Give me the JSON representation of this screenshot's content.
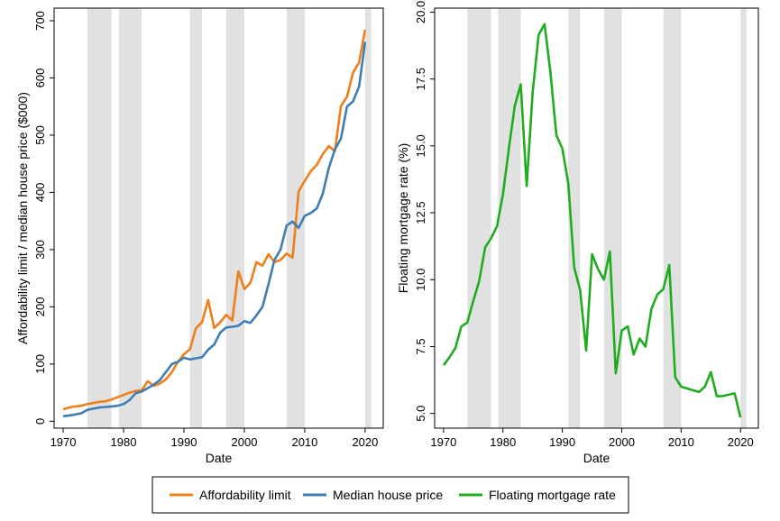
{
  "chart_data": [
    {
      "type": "line",
      "xlabel": "Date",
      "ylabel": "Affordability limit / median house price ($000)",
      "xlim": [
        1968.5,
        2023
      ],
      "ylim": [
        -12,
        722
      ],
      "x_ticks": [
        1970,
        1980,
        1990,
        2000,
        2010,
        2020
      ],
      "y_ticks": [
        0,
        100,
        200,
        300,
        400,
        500,
        600,
        700
      ],
      "recession_shading": [
        [
          1974,
          1978
        ],
        [
          1979.2,
          1983
        ],
        [
          1991,
          1993
        ],
        [
          1997,
          2000
        ],
        [
          2007,
          2010
        ],
        [
          2020,
          2021
        ]
      ],
      "series": [
        {
          "name": "Affordability limit",
          "color": "#ef7f1a",
          "points": [
            [
              1970,
              21
            ],
            [
              1971,
              24
            ],
            [
              1972,
              26
            ],
            [
              1973,
              27
            ],
            [
              1974,
              30
            ],
            [
              1975,
              32
            ],
            [
              1976,
              34
            ],
            [
              1977,
              35
            ],
            [
              1978,
              38
            ],
            [
              1979,
              42
            ],
            [
              1980,
              46
            ],
            [
              1981,
              50
            ],
            [
              1982,
              53
            ],
            [
              1983,
              54
            ],
            [
              1984,
              70
            ],
            [
              1985,
              62
            ],
            [
              1986,
              66
            ],
            [
              1987,
              73
            ],
            [
              1988,
              86
            ],
            [
              1989,
              104
            ],
            [
              1990,
              117
            ],
            [
              1991,
              126
            ],
            [
              1992,
              163
            ],
            [
              1993,
              173
            ],
            [
              1994,
              212
            ],
            [
              1995,
              163
            ],
            [
              1996,
              173
            ],
            [
              1997,
              186
            ],
            [
              1998,
              176
            ],
            [
              1999,
              262
            ],
            [
              2000,
              231
            ],
            [
              2001,
              242
            ],
            [
              2002,
              278
            ],
            [
              2003,
              272
            ],
            [
              2004,
              292
            ],
            [
              2005,
              278
            ],
            [
              2006,
              282
            ],
            [
              2007,
              293
            ],
            [
              2008,
              286
            ],
            [
              2009,
              402
            ],
            [
              2010,
              420
            ],
            [
              2011,
              437
            ],
            [
              2012,
              448
            ],
            [
              2013,
              467
            ],
            [
              2014,
              481
            ],
            [
              2015,
              472
            ],
            [
              2016,
              551
            ],
            [
              2017,
              567
            ],
            [
              2018,
              609
            ],
            [
              2019,
              627
            ],
            [
              2020,
              684
            ]
          ]
        },
        {
          "name": "Median house price",
          "color": "#3f7db5",
          "points": [
            [
              1970,
              9
            ],
            [
              1971,
              10
            ],
            [
              1972,
              12
            ],
            [
              1973,
              14
            ],
            [
              1974,
              20
            ],
            [
              1975,
              22
            ],
            [
              1976,
              24
            ],
            [
              1977,
              25
            ],
            [
              1978,
              26
            ],
            [
              1979,
              27
            ],
            [
              1980,
              30
            ],
            [
              1981,
              37
            ],
            [
              1982,
              49
            ],
            [
              1983,
              52
            ],
            [
              1984,
              58
            ],
            [
              1985,
              64
            ],
            [
              1986,
              72
            ],
            [
              1987,
              86
            ],
            [
              1988,
              100
            ],
            [
              1989,
              104
            ],
            [
              1990,
              111
            ],
            [
              1991,
              108
            ],
            [
              1992,
              110
            ],
            [
              1993,
              112
            ],
            [
              1994,
              125
            ],
            [
              1995,
              134
            ],
            [
              1996,
              155
            ],
            [
              1997,
              164
            ],
            [
              1998,
              165
            ],
            [
              1999,
              167
            ],
            [
              2000,
              175
            ],
            [
              2001,
              172
            ],
            [
              2002,
              185
            ],
            [
              2003,
              200
            ],
            [
              2004,
              240
            ],
            [
              2005,
              282
            ],
            [
              2006,
              300
            ],
            [
              2007,
              342
            ],
            [
              2008,
              349
            ],
            [
              2009,
              338
            ],
            [
              2010,
              359
            ],
            [
              2011,
              364
            ],
            [
              2012,
              372
            ],
            [
              2013,
              398
            ],
            [
              2014,
              443
            ],
            [
              2015,
              475
            ],
            [
              2016,
              494
            ],
            [
              2017,
              550
            ],
            [
              2018,
              559
            ],
            [
              2019,
              585
            ],
            [
              2020,
              663
            ]
          ]
        }
      ]
    },
    {
      "type": "line",
      "xlabel": "Date",
      "ylabel": "Floating mortgage rate (%)",
      "xlim": [
        1968.5,
        2023
      ],
      "ylim": [
        4.45,
        20.15
      ],
      "x_ticks": [
        1970,
        1980,
        1990,
        2000,
        2010,
        2020
      ],
      "y_ticks": [
        "5.0",
        "7.5",
        "10.0",
        "12.5",
        "15.0",
        "17.5",
        "20.0"
      ],
      "recession_shading": [
        [
          1974,
          1978
        ],
        [
          1979.2,
          1983
        ],
        [
          1991,
          1993
        ],
        [
          1997,
          2000
        ],
        [
          2007,
          2010
        ],
        [
          2020,
          2021
        ]
      ],
      "series": [
        {
          "name": "Floating mortgage rate",
          "color": "#1fad1f",
          "points": [
            [
              1970,
              6.8
            ],
            [
              1971,
              7.1
            ],
            [
              1972,
              7.45
            ],
            [
              1973,
              8.25
            ],
            [
              1974,
              8.4
            ],
            [
              1975,
              9.2
            ],
            [
              1976,
              9.95
            ],
            [
              1977,
              11.2
            ],
            [
              1978,
              11.55
            ],
            [
              1979,
              12.0
            ],
            [
              1980,
              13.2
            ],
            [
              1981,
              14.9
            ],
            [
              1982,
              16.5
            ],
            [
              1983,
              17.3
            ],
            [
              1984,
              13.5
            ],
            [
              1985,
              17.0
            ],
            [
              1986,
              19.15
            ],
            [
              1987,
              19.55
            ],
            [
              1988,
              17.75
            ],
            [
              1989,
              15.4
            ],
            [
              1990,
              14.9
            ],
            [
              1991,
              13.6
            ],
            [
              1992,
              10.45
            ],
            [
              1993,
              9.6
            ],
            [
              1994,
              7.35
            ],
            [
              1995,
              10.95
            ],
            [
              1996,
              10.4
            ],
            [
              1997,
              10.0
            ],
            [
              1998,
              11.05
            ],
            [
              1999,
              6.5
            ],
            [
              2000,
              8.1
            ],
            [
              2001,
              8.25
            ],
            [
              2002,
              7.2
            ],
            [
              2003,
              7.8
            ],
            [
              2004,
              7.5
            ],
            [
              2005,
              8.9
            ],
            [
              2006,
              9.45
            ],
            [
              2007,
              9.65
            ],
            [
              2008,
              10.55
            ],
            [
              2009,
              6.35
            ],
            [
              2010,
              6.0
            ],
            [
              2013,
              5.8
            ],
            [
              2014,
              6.0
            ],
            [
              2015,
              6.55
            ],
            [
              2016,
              5.65
            ],
            [
              2017,
              5.65
            ],
            [
              2018,
              5.7
            ],
            [
              2019,
              5.75
            ],
            [
              2020,
              4.85
            ]
          ]
        }
      ]
    }
  ],
  "legend": {
    "placement": "bottom",
    "items": [
      {
        "label": "Affordability limit",
        "color": "#ef7f1a"
      },
      {
        "label": "Median house price",
        "color": "#3f7db5"
      },
      {
        "label": "Floating mortgage rate",
        "color": "#1fad1f"
      }
    ]
  }
}
